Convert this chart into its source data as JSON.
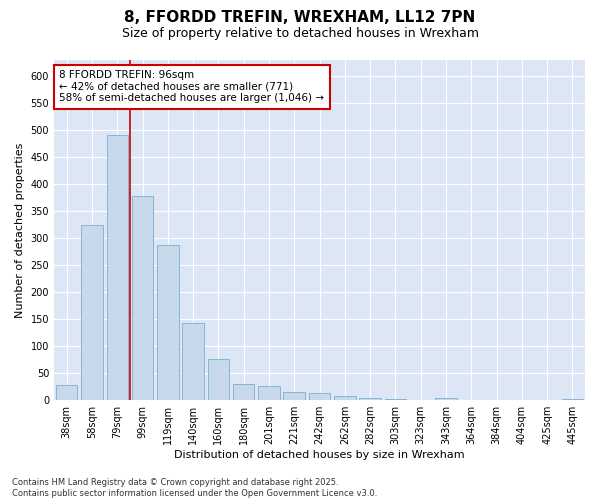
{
  "title1": "8, FFORDD TREFIN, WREXHAM, LL12 7PN",
  "title2": "Size of property relative to detached houses in Wrexham",
  "xlabel": "Distribution of detached houses by size in Wrexham",
  "ylabel": "Number of detached properties",
  "categories": [
    "38sqm",
    "58sqm",
    "79sqm",
    "99sqm",
    "119sqm",
    "140sqm",
    "160sqm",
    "180sqm",
    "201sqm",
    "221sqm",
    "242sqm",
    "262sqm",
    "282sqm",
    "303sqm",
    "323sqm",
    "343sqm",
    "364sqm",
    "384sqm",
    "404sqm",
    "425sqm",
    "445sqm"
  ],
  "values": [
    28,
    325,
    492,
    378,
    288,
    143,
    77,
    30,
    27,
    15,
    14,
    7,
    5,
    2,
    1,
    5,
    1,
    1,
    1,
    1,
    3
  ],
  "bar_color": "#c9d9ec",
  "bar_edge_color": "#7aafd4",
  "vline_color": "#cc0000",
  "vline_x": 2.5,
  "annotation_text": "8 FFORDD TREFIN: 96sqm\n← 42% of detached houses are smaller (771)\n58% of semi-detached houses are larger (1,046) →",
  "annotation_box_facecolor": "#ffffff",
  "annotation_box_edgecolor": "#cc0000",
  "ylim": [
    0,
    630
  ],
  "yticks": [
    0,
    50,
    100,
    150,
    200,
    250,
    300,
    350,
    400,
    450,
    500,
    550,
    600
  ],
  "footer": "Contains HM Land Registry data © Crown copyright and database right 2025.\nContains public sector information licensed under the Open Government Licence v3.0.",
  "bg_color": "#dce6f5",
  "fig_bg_color": "#ffffff",
  "title1_fontsize": 11,
  "title2_fontsize": 9,
  "axis_label_fontsize": 8,
  "tick_fontsize": 7,
  "annotation_fontsize": 7.5,
  "footer_fontsize": 6
}
